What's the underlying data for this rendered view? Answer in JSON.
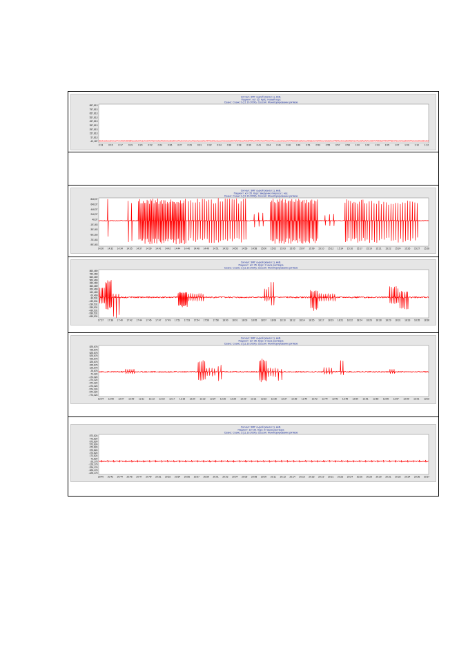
{
  "chart_data": [
    {
      "type": "line",
      "title_lines": [
        "Сигнал: ЭМГ сырой (канал 1), мкВ.",
        "Пациент: кот 35. Курс: Новый курс",
        "Сеанс: Сеанс 3 (11.10.2006). Сессия: Мониторирование ритмов"
      ],
      "xlabel": "",
      "ylabel": "",
      "y_ticks": [
        "857,813",
        "757,813",
        "657,813",
        "557,813",
        "457,813",
        "357,813",
        "257,813",
        "157,813",
        "57,813",
        "-42,187"
      ],
      "x_ticks": [
        "0:13",
        "0:15",
        "0:17",
        "0:19",
        "0:20",
        "0:22",
        "0:24",
        "0:26",
        "0:27",
        "0:29",
        "0:31",
        "0:32",
        "0:34",
        "0:36",
        "0:38",
        "0:39",
        "0:41",
        "0:44",
        "0:46",
        "0:48",
        "0:49",
        "0:51",
        "0:53",
        "0:55",
        "0:57",
        "0:58",
        "1:00",
        "1:02",
        "1:03",
        "1:05",
        "1:07",
        "1:09",
        "1:10",
        "1:12"
      ],
      "ylim": [
        -42.187,
        857.813
      ],
      "baseline": 0,
      "noise": 7,
      "events": []
    },
    {
      "type": "line",
      "title_lines": [
        "Сигнал: ЭМГ сырой (канал 1), мкВ.",
        "Пациент: кот 35. Курс: введение пикроса 1 час.",
        "Сеанс: Сеанс 1 (11.10.2006). Сессия: Мониторирование ритмов"
      ],
      "xlabel": "",
      "ylabel": "",
      "y_ticks": [
        "848,37",
        "648,37",
        "448,37",
        "248,37",
        "48,37",
        "-151,63",
        "-351,63",
        "-551,63",
        "-751,63",
        "-951,63"
      ],
      "x_ticks": [
        "14:30",
        "14:32",
        "14:34",
        "14:35",
        "14:37",
        "14:39",
        "14:41",
        "14:42",
        "14:44",
        "14:46",
        "14:48",
        "14:49",
        "14:51",
        "14:53",
        "14:55",
        "14:56",
        "14:58",
        "15:00",
        "15:02",
        "15:03",
        "15:05",
        "15:07",
        "15:09",
        "15:10",
        "15:12",
        "15:14",
        "15:16",
        "15:17",
        "15:19",
        "15:21",
        "15:22",
        "15:24",
        "15:26",
        "15:27",
        "15:28"
      ],
      "ylim": [
        -951.63,
        848.37
      ],
      "baseline": 0,
      "noise": 12,
      "events": [
        {
          "start": 0.02,
          "end": 0.035,
          "count": 1,
          "amp": 800,
          "neg": 700
        },
        {
          "start": 0.085,
          "end": 0.105,
          "count": 2,
          "amp": 850,
          "neg": 800
        },
        {
          "start": 0.12,
          "end": 0.265,
          "count": 40,
          "amp": 820,
          "neg": 880
        },
        {
          "start": 0.27,
          "end": 0.45,
          "count": 26,
          "amp": 840,
          "neg": 850
        },
        {
          "start": 0.465,
          "end": 0.505,
          "count": 3,
          "amp": 300,
          "neg": 250
        },
        {
          "start": 0.52,
          "end": 0.665,
          "count": 36,
          "amp": 820,
          "neg": 860
        },
        {
          "start": 0.68,
          "end": 0.72,
          "count": 3,
          "amp": 250,
          "neg": 200
        },
        {
          "start": 0.745,
          "end": 0.81,
          "count": 12,
          "amp": 820,
          "neg": 820
        },
        {
          "start": 0.81,
          "end": 0.97,
          "count": 22,
          "amp": 760,
          "neg": 820
        }
      ]
    },
    {
      "type": "line",
      "title_lines": [
        "Сигнал: ЭМГ сырой (канал 1), мкВ.",
        "Пациент: кот 35. Курс: 3 часа раствора",
        "Сеанс: Сеанс 1 (11.10.2006). Сессия: Мониторирование ритмов"
      ],
      "xlabel": "",
      "ylabel": "",
      "y_ticks": [
        "860,469",
        "760,469",
        "660,469",
        "560,469",
        "460,469",
        "360,469",
        "260,469",
        "160,469",
        "60,469",
        "-39,531",
        "-139,531",
        "-239,531",
        "-339,531",
        "-439,531",
        "-539,531",
        "-639,531"
      ],
      "x_ticks": [
        "17:37",
        "17:38",
        "17:40",
        "17:42",
        "17:44",
        "17:45",
        "17:47",
        "17:49",
        "17:51",
        "17:53",
        "17:54",
        "17:56",
        "17:58",
        "18:00",
        "18:01",
        "18:03",
        "18:05",
        "18:07",
        "18:08",
        "18:10",
        "18:12",
        "18:14",
        "18:15",
        "18:17",
        "18:19",
        "18:21",
        "18:22",
        "18:24",
        "18:26",
        "18:28",
        "18:29",
        "18:31",
        "18:33",
        "18:35",
        "18:36"
      ],
      "ylim": [
        -639.531,
        860.469
      ],
      "baseline": 0,
      "noise": 22,
      "events": [
        {
          "start": 0.0,
          "end": 0.02,
          "count": 4,
          "amp": 300,
          "neg": 200
        },
        {
          "start": 0.02,
          "end": 0.04,
          "count": 6,
          "amp": 560,
          "neg": 380
        },
        {
          "start": 0.04,
          "end": 0.065,
          "count": 3,
          "amp": 120,
          "neg": 640
        },
        {
          "start": 0.24,
          "end": 0.27,
          "count": 10,
          "amp": 160,
          "neg": 300
        },
        {
          "start": 0.27,
          "end": 0.32,
          "count": 8,
          "amp": 120,
          "neg": 120
        },
        {
          "start": 0.5,
          "end": 0.52,
          "count": 3,
          "amp": 320,
          "neg": 120
        },
        {
          "start": 0.52,
          "end": 0.535,
          "count": 2,
          "amp": 560,
          "neg": 260
        },
        {
          "start": 0.64,
          "end": 0.665,
          "count": 6,
          "amp": 220,
          "neg": 420
        },
        {
          "start": 0.665,
          "end": 0.72,
          "count": 8,
          "amp": 120,
          "neg": 120
        },
        {
          "start": 0.88,
          "end": 0.91,
          "count": 6,
          "amp": 340,
          "neg": 200
        },
        {
          "start": 0.91,
          "end": 0.94,
          "count": 6,
          "amp": 200,
          "neg": 420
        }
      ]
    },
    {
      "type": "line",
      "title_lines": [
        "Сигнал: ЭМГ сырой (канал 1), мкВ.",
        "Пациент: кот 35. Курс: 3 часа раствора",
        "Сеанс: Сеанс 1 (11.10.2006). Сессия: Мониторирование ритмов"
      ],
      "xlabel": "",
      "ylabel": "",
      "y_ticks": [
        "825,676",
        "725,676",
        "625,676",
        "525,676",
        "425,676",
        "325,676",
        "225,676",
        "125,676",
        "25,676",
        "-74,324",
        "-174,324",
        "-274,324",
        "-374,324",
        "-474,324",
        "-574,324",
        "-674,324",
        "-774,324"
      ],
      "x_ticks": [
        "12:04",
        "12:05",
        "12:07",
        "12:09",
        "12:11",
        "12:13",
        "12:15",
        "12:17",
        "12:18",
        "12:20",
        "12:22",
        "12:24",
        "12:26",
        "12:28",
        "12:29",
        "12:31",
        "12:33",
        "12:35",
        "12:37",
        "12:39",
        "12:40",
        "12:42",
        "12:44",
        "12:46",
        "12:48",
        "12:50",
        "12:51",
        "12:53",
        "12:55",
        "12:57",
        "12:59",
        "13:01",
        "13:02"
      ],
      "ylim": [
        -774.324,
        825.676
      ],
      "baseline": 0,
      "noise": 18,
      "events": [
        {
          "start": 0.08,
          "end": 0.11,
          "count": 5,
          "amp": 90,
          "neg": 60
        },
        {
          "start": 0.3,
          "end": 0.325,
          "count": 5,
          "amp": 380,
          "neg": 300
        },
        {
          "start": 0.325,
          "end": 0.355,
          "count": 4,
          "amp": 120,
          "neg": 140
        },
        {
          "start": 0.36,
          "end": 0.375,
          "count": 2,
          "amp": 220,
          "neg": 300
        },
        {
          "start": 0.485,
          "end": 0.51,
          "count": 6,
          "amp": 420,
          "neg": 320
        },
        {
          "start": 0.51,
          "end": 0.54,
          "count": 4,
          "amp": 120,
          "neg": 160
        },
        {
          "start": 0.54,
          "end": 0.56,
          "count": 2,
          "amp": 100,
          "neg": 300
        },
        {
          "start": 0.68,
          "end": 0.71,
          "count": 4,
          "amp": 150,
          "neg": 80
        },
        {
          "start": 0.73,
          "end": 0.745,
          "count": 2,
          "amp": 380,
          "neg": 100
        },
        {
          "start": 0.88,
          "end": 0.9,
          "count": 3,
          "amp": 90,
          "neg": 60
        }
      ]
    },
    {
      "type": "line",
      "title_lines": [
        "Сигнал: ЭМГ сырой (канал 1), мкВ.",
        "Пациент: кот 35. Курс: 5 часов раствора",
        "Сеанс: Сеанс 1 (11.10.2006). Сессия: Мониторирование ритмов"
      ],
      "xlabel": "",
      "ylabel": "",
      "y_ticks": [
        "873,824",
        "773,824",
        "673,824",
        "573,824",
        "473,824",
        "373,824",
        "273,824",
        "173,824",
        "73,824",
        "-26,176",
        "-126,176",
        "-226,176",
        "-326,176",
        "-426,176"
      ],
      "x_ticks": [
        "20:40",
        "20:42",
        "20:44",
        "20:46",
        "20:47",
        "20:49",
        "20:51",
        "20:52",
        "20:54",
        "20:56",
        "20:57",
        "20:59",
        "20:01",
        "20:02",
        "20:04",
        "20:06",
        "20:08",
        "20:09",
        "20:11",
        "20:13",
        "20:14",
        "20:16",
        "20:18",
        "20:19",
        "20:21",
        "20:23",
        "20:24",
        "20:26",
        "20:28",
        "20:30",
        "20:31",
        "20:33",
        "20:34",
        "20:36",
        "20:37"
      ],
      "ylim": [
        -426.176,
        873.824
      ],
      "baseline": 0,
      "noise": 10,
      "events": [
        {
          "start": 0.0,
          "end": 1.0,
          "count": 55,
          "amp": 40,
          "neg": 30
        }
      ]
    }
  ]
}
